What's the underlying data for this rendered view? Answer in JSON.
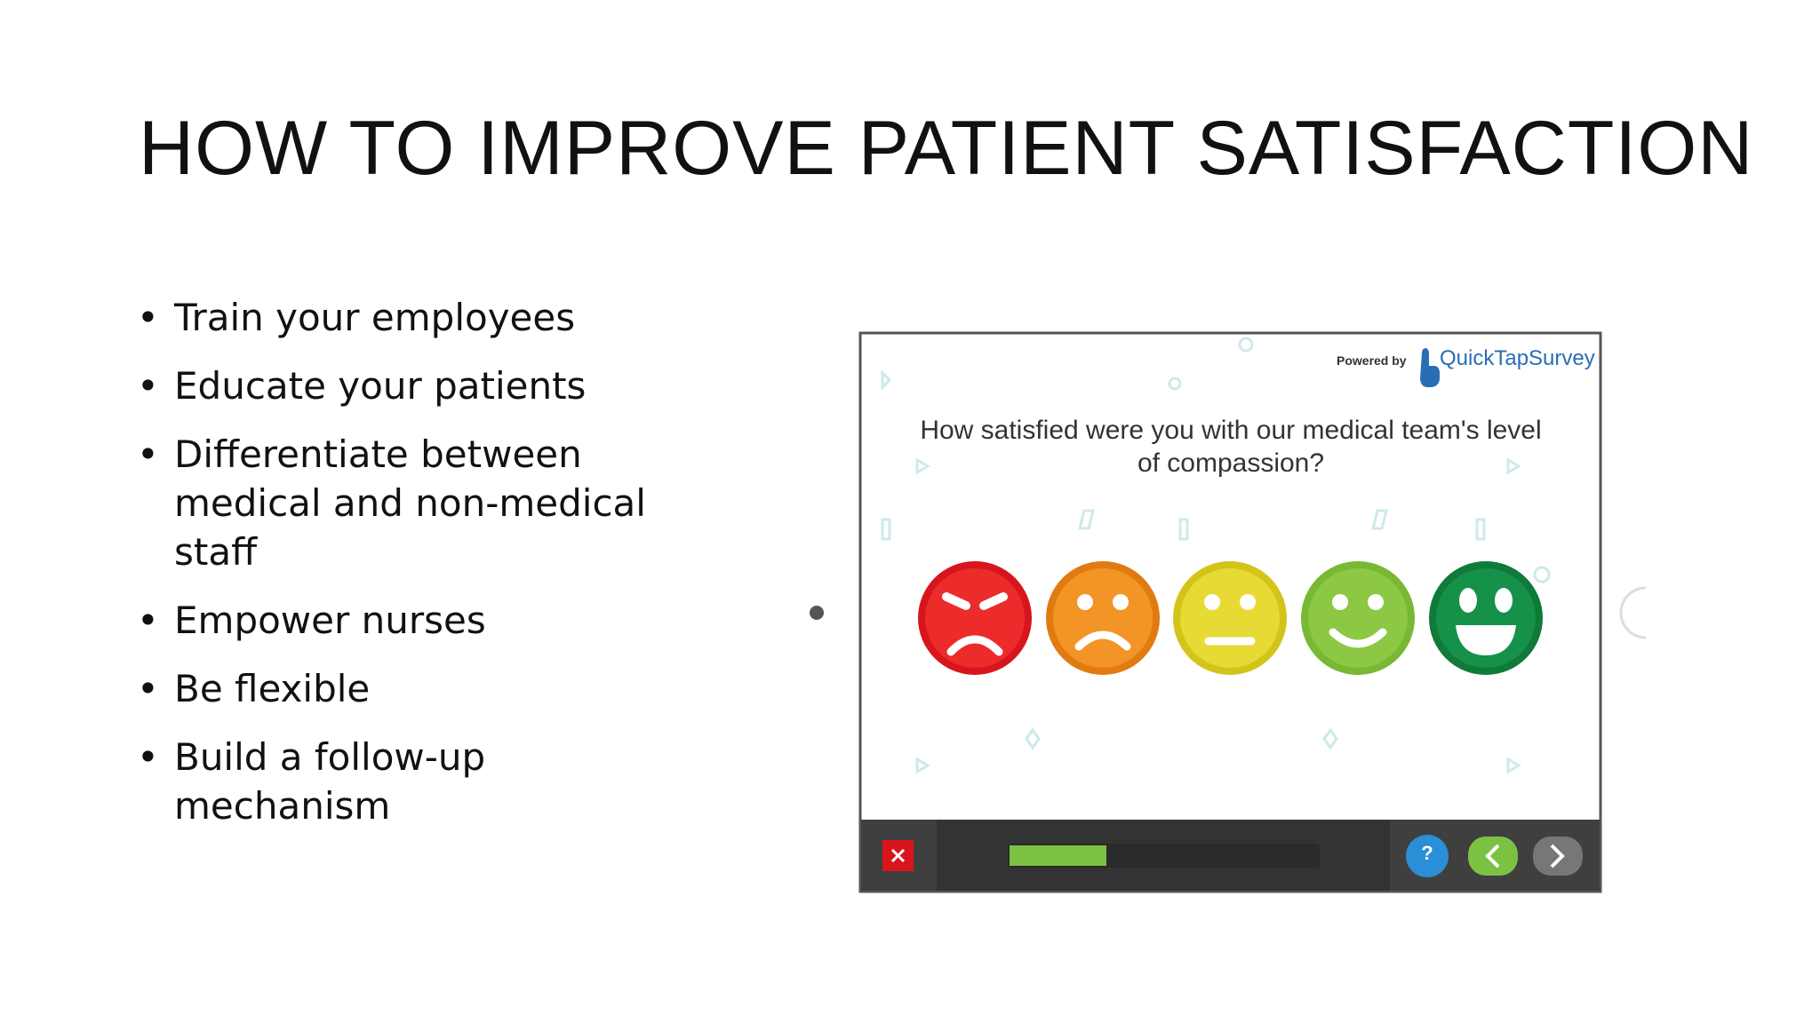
{
  "slide": {
    "title": "HOW TO IMPROVE PATIENT SATISFACTION",
    "bullets": [
      "Train your employees",
      "Educate your patients",
      "Differentiate between medical and non-medical staff",
      "Empower nurses",
      "Be flexible",
      "Build a follow-up mechanism"
    ],
    "survey": {
      "powered_by": "Powered by",
      "brand": "QuickTapSurvey",
      "question": "How satisfied were you with our medical team's level of compassion?",
      "help": "?"
    }
  }
}
